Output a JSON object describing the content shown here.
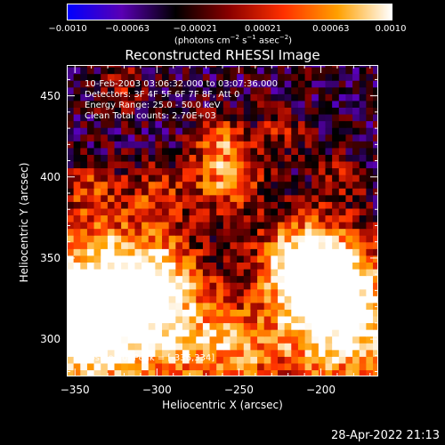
{
  "chart_data": {
    "type": "heatmap",
    "title": "Reconstructed RHESSI Image",
    "xlabel": "Heliocentric X (arcsec)",
    "ylabel": "Heliocentric Y (arcsec)",
    "xlim": [
      -355,
      -165
    ],
    "ylim": [
      277,
      469
    ],
    "xticks": [
      -350,
      -300,
      -250,
      -200
    ],
    "xtick_labels": [
      "−350",
      "−300",
      "−250",
      "−200"
    ],
    "yticks": [
      300,
      350,
      400,
      450
    ],
    "ytick_labels": [
      "300",
      "350",
      "400",
      "450"
    ],
    "colorbar": {
      "range": [
        -0.001,
        0.001
      ],
      "ticks": [
        -0.001,
        -0.00063,
        -0.00021,
        0.00021,
        0.00063,
        0.001
      ],
      "tick_labels": [
        "−0.0010",
        "−0.00063",
        "−0.00021",
        "0.00021",
        "0.00063",
        "0.0010"
      ],
      "units": {
        "pre": "(photons cm",
        "exp1": "−2",
        "mid1": " s",
        "exp2": "−1",
        "mid2": " asec",
        "exp3": "−2",
        "post": ")"
      },
      "colormap": [
        "#0000ff",
        "#5a00b4",
        "#000000",
        "#8b0000",
        "#ff3000",
        "#ffa000",
        "#ffffff"
      ]
    },
    "annotations": [
      "10-Feb-2003 03:06:32.000 to 03:07:36.000",
      "Detectors: 3F 4F 5F 6F 7F 8F, Att 0",
      "Energy Range: 25.0 - 50.0 keV",
      "Clean     Total counts: 2.70E+03",
      "Position of Peak = [-336,334]"
    ],
    "peak": {
      "x": -336,
      "y": 334
    },
    "intensity_model": {
      "grid": {
        "x_start": -355,
        "x_end": -165,
        "y_start": 277,
        "y_end": 469,
        "step": 4.15
      },
      "base": -0.00036,
      "blobs": [
        {
          "x": -336,
          "y": 334,
          "amp": 0.00135,
          "sigma": 32
        },
        {
          "x": -345,
          "y": 300,
          "amp": 0.0011,
          "sigma": 24
        },
        {
          "x": -300,
          "y": 340,
          "amp": 0.0007,
          "sigma": 17
        },
        {
          "x": -285,
          "y": 300,
          "amp": 0.00095,
          "sigma": 25
        },
        {
          "x": -245,
          "y": 290,
          "amp": 0.0006,
          "sigma": 19
        },
        {
          "x": -185,
          "y": 305,
          "amp": 0.00125,
          "sigma": 28
        },
        {
          "x": -210,
          "y": 348,
          "amp": 0.0011,
          "sigma": 20
        },
        {
          "x": -195,
          "y": 335,
          "amp": 0.001,
          "sigma": 22
        },
        {
          "x": -258,
          "y": 400,
          "amp": 0.00095,
          "sigma": 15
        },
        {
          "x": -263,
          "y": 425,
          "amp": 0.0007,
          "sigma": 10
        },
        {
          "x": -300,
          "y": 390,
          "amp": 0.0005,
          "sigma": 12
        },
        {
          "x": -225,
          "y": 430,
          "amp": 0.00045,
          "sigma": 11
        },
        {
          "x": -190,
          "y": 400,
          "amp": 0.0004,
          "sigma": 12
        },
        {
          "x": -340,
          "y": 395,
          "amp": 0.00045,
          "sigma": 11
        },
        {
          "x": -320,
          "y": 455,
          "amp": 0.00035,
          "sigma": 12
        }
      ],
      "noise": 0.00036
    }
  },
  "timestamp": "28-Apr-2022 21:13"
}
